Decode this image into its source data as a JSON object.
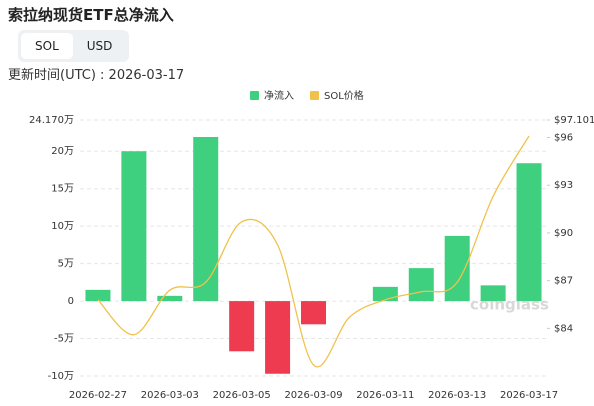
{
  "header": {
    "title": "索拉纳现货ETF总净流入",
    "tabs": [
      "SOL",
      "USD"
    ],
    "updated": "更新时间(UTC) : 2026-03-17"
  },
  "chart_data": {
    "type": "bar-line",
    "categories": [
      "2026-02-27",
      null,
      "2026-03-03",
      null,
      "2026-03-05",
      null,
      "2026-03-09",
      null,
      "2026-03-11",
      null,
      "2026-03-13",
      null,
      "2026-03-17"
    ],
    "series": [
      {
        "name": "净流入",
        "type": "bar",
        "color": "#3ecf7f",
        "negative_color": "#ef3b4f",
        "values": [
          1.5,
          20.0,
          0.7,
          21.9,
          -6.7,
          -9.7,
          -3.1,
          0,
          1.9,
          4.4,
          8.7,
          2.1,
          18.4
        ]
      },
      {
        "name": "SOL价格",
        "type": "line",
        "axis": "y2",
        "color": "#f0c24b",
        "values": [
          85.8,
          83.6,
          86.4,
          86.9,
          90.7,
          89.25,
          81.7,
          84.7,
          85.8,
          86.3,
          86.9,
          92.3,
          96.1
        ]
      }
    ],
    "ylim": [
      -11.2,
      24.17
    ],
    "yticks": [
      {
        "value": 24.17,
        "label": "24.170万"
      },
      {
        "value": 20,
        "label": "20万"
      },
      {
        "value": 15,
        "label": "15万"
      },
      {
        "value": 10,
        "label": "10万"
      },
      {
        "value": 5,
        "label": "5万"
      },
      0,
      {
        "value": -5,
        "label": "-5万"
      },
      {
        "value": -10,
        "label": "-10万"
      }
    ],
    "y2lim": [
      80.44,
      97.101
    ],
    "y2ticks": [
      {
        "value": 97.101,
        "label": "$97.101"
      },
      {
        "value": 96,
        "label": "$96"
      },
      {
        "value": 93,
        "label": "$93"
      },
      {
        "value": 90,
        "label": "$90"
      },
      {
        "value": 87,
        "label": "$87"
      },
      {
        "value": 84,
        "label": "$84"
      }
    ],
    "grid": true,
    "legend": "top",
    "watermark": "coinglass"
  }
}
